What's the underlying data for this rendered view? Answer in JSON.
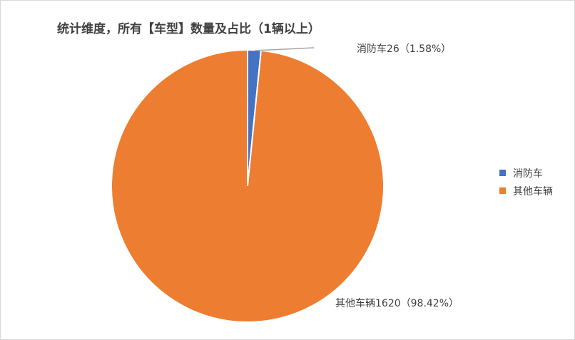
{
  "chart_data": {
    "type": "pie",
    "title": "统计维度，所有【车型】数量及占比（1辆以上）",
    "categories": [
      "消防车",
      "其他车辆"
    ],
    "values": [
      26,
      1620
    ],
    "percentages": [
      "1.58%",
      "98.42%"
    ],
    "data_labels": [
      "消防车26（1.58%）",
      "其他车辆1620（98.42%）"
    ],
    "colors": [
      "#4472C4",
      "#ED7D31"
    ],
    "legend_position": "right",
    "start_angle": "top, clockwise"
  }
}
